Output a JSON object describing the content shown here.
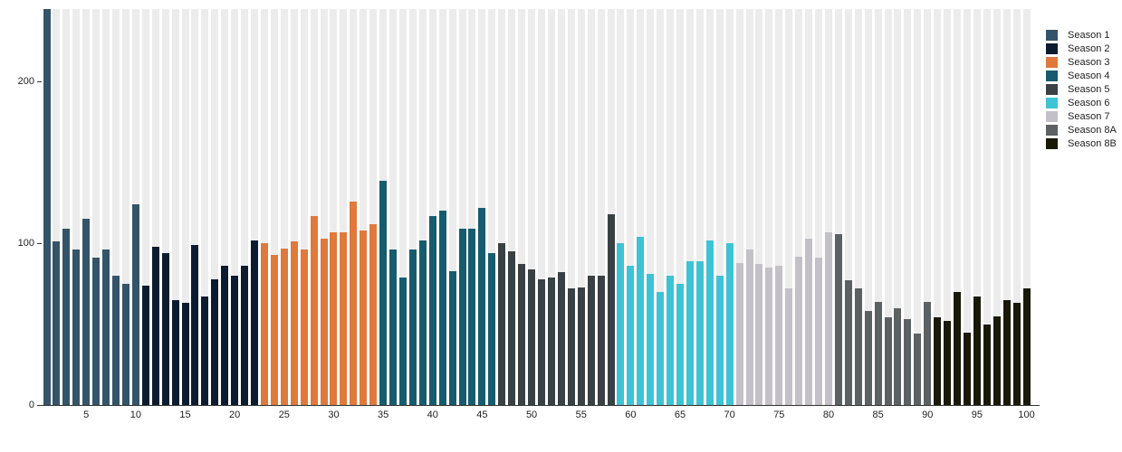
{
  "chart_data": {
    "type": "bar",
    "title": "",
    "xlabel": "",
    "ylabel": "",
    "x_unit": "episode_number",
    "x_range": [
      1,
      100
    ],
    "ylim": [
      0,
      245
    ],
    "y_ticks": [
      0,
      100,
      200
    ],
    "x_ticks": [
      5,
      10,
      15,
      20,
      25,
      30,
      35,
      40,
      45,
      50,
      55,
      60,
      65,
      70,
      75,
      80,
      85,
      90,
      95,
      100
    ],
    "grid": "column-background-stripes",
    "legend_position": "right",
    "note_first_bar_clipped_at_plot_top": true,
    "series": [
      {
        "name": "Season 1",
        "color": "#345469",
        "values": [
          245,
          101,
          109,
          96,
          115,
          91,
          96,
          80,
          75,
          124
        ]
      },
      {
        "name": "Season 2",
        "color": "#0c1c30",
        "values": [
          74,
          98,
          94,
          65,
          63,
          99,
          67,
          78,
          86,
          80,
          86,
          102
        ]
      },
      {
        "name": "Season 3",
        "color": "#e0793c",
        "values": [
          100,
          93,
          97,
          101,
          96,
          117,
          103,
          107,
          107,
          126,
          108,
          112
        ]
      },
      {
        "name": "Season 4",
        "color": "#175b6e",
        "values": [
          139,
          96,
          79,
          96,
          102,
          117,
          120,
          83,
          109,
          109,
          122,
          94
        ]
      },
      {
        "name": "Season 5",
        "color": "#3a4144",
        "values": [
          100,
          95,
          87,
          84,
          78,
          79,
          82,
          72,
          73,
          80,
          80,
          118
        ]
      },
      {
        "name": "Season 6",
        "color": "#3ec3d4",
        "values": [
          100,
          86,
          104,
          81,
          70,
          80,
          75,
          89,
          89,
          102,
          80,
          100
        ]
      },
      {
        "name": "Season 7",
        "color": "#c3c0c8",
        "values": [
          88,
          96,
          87,
          85,
          86,
          72,
          92,
          103,
          91,
          107
        ]
      },
      {
        "name": "Season 8A",
        "color": "#5c6163",
        "values": [
          106,
          77,
          72,
          58,
          64,
          54,
          60,
          53,
          44,
          64
        ]
      },
      {
        "name": "Season 8B",
        "color": "#1a1908",
        "values": [
          54,
          52,
          70,
          45,
          67,
          50,
          55,
          65,
          63,
          72
        ]
      }
    ],
    "stripe_color": "#ececec",
    "axis_color": "#333333",
    "label_color": "#222222"
  }
}
